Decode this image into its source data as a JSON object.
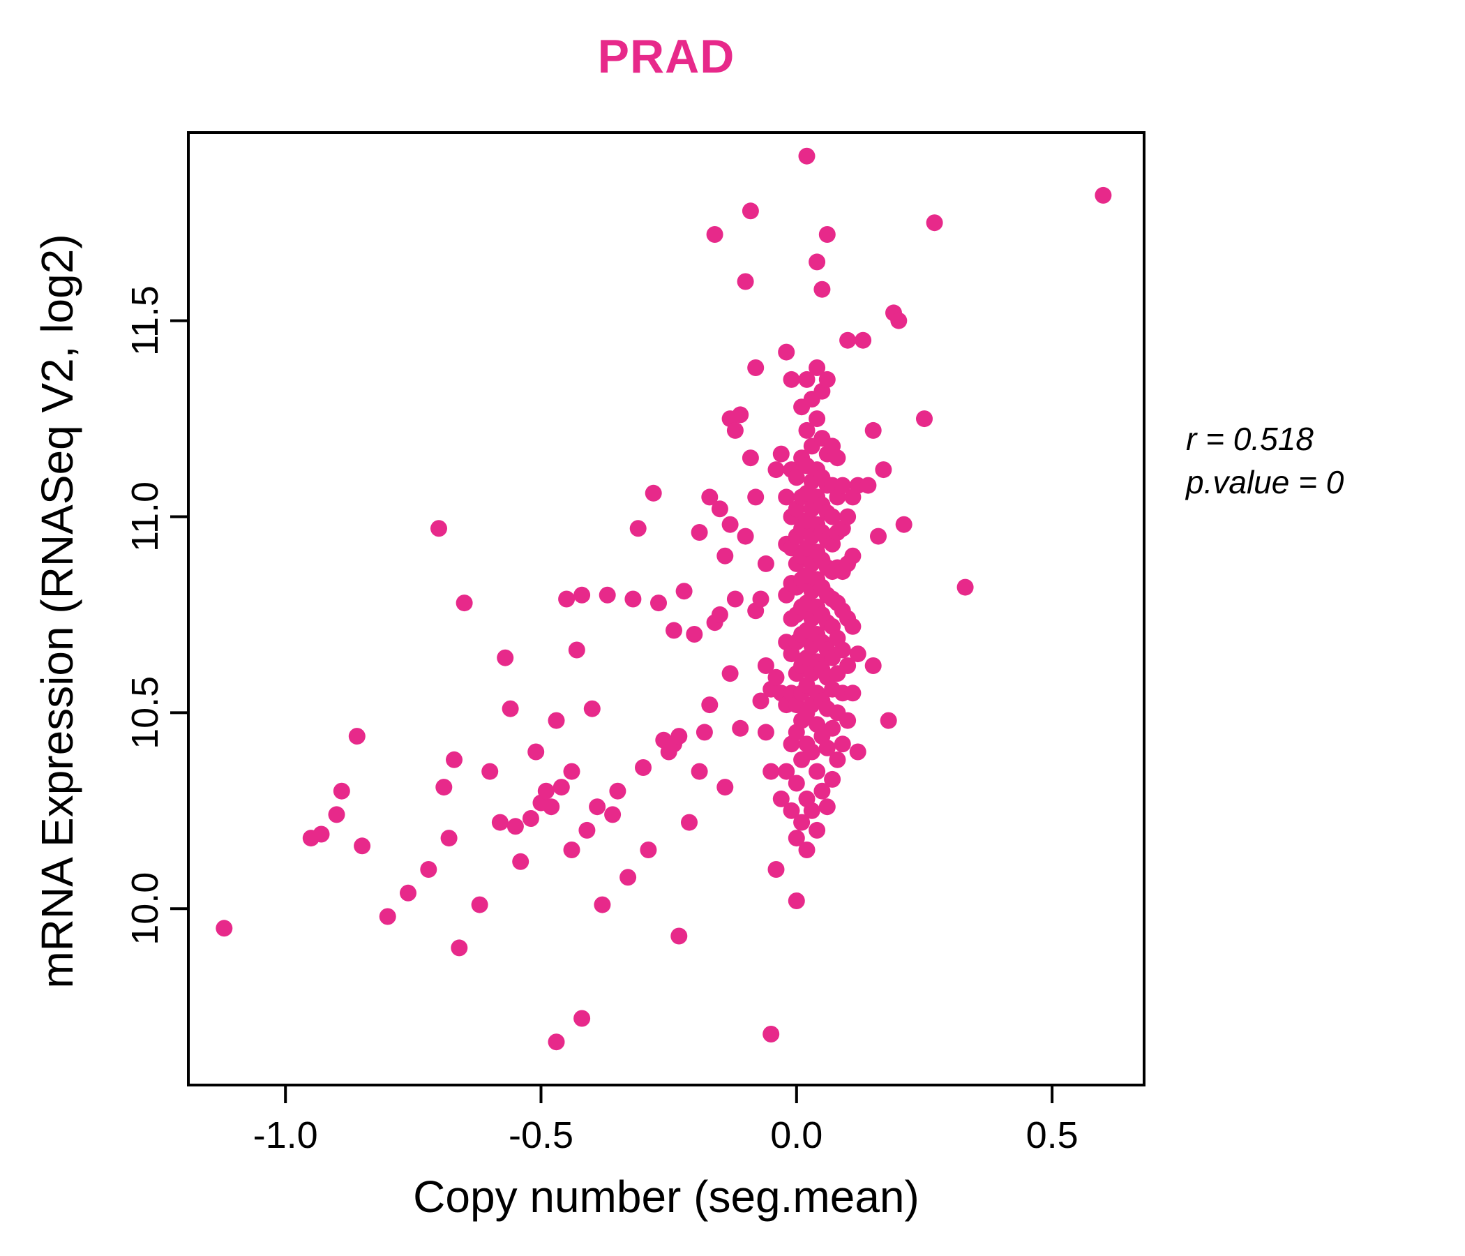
{
  "chart_data": {
    "type": "scatter",
    "title": "PRAD",
    "xlabel": "Copy number (seg.mean)",
    "ylabel": "mRNA Expression (RNASeq V2, log2)",
    "xlim": [
      -1.19,
      0.68
    ],
    "ylim": [
      9.55,
      11.98
    ],
    "grid": false,
    "point_color": "#E7298A",
    "title_color": "#E7298A",
    "axis_color": "#000000",
    "xticks": [
      {
        "value": -1.0,
        "label": "-1.0"
      },
      {
        "value": -0.5,
        "label": "-0.5"
      },
      {
        "value": 0.0,
        "label": "0.0"
      },
      {
        "value": 0.5,
        "label": "0.5"
      }
    ],
    "yticks": [
      {
        "value": 10.0,
        "label": "10.0"
      },
      {
        "value": 10.5,
        "label": "10.5"
      },
      {
        "value": 11.0,
        "label": "11.0"
      },
      {
        "value": 11.5,
        "label": "11.5"
      }
    ],
    "annotation": {
      "r_text": "r = 0.518",
      "p_text": "p.value = 0"
    },
    "points": [
      [
        -1.12,
        9.95
      ],
      [
        -0.95,
        10.18
      ],
      [
        -0.93,
        10.19
      ],
      [
        -0.9,
        10.24
      ],
      [
        -0.89,
        10.3
      ],
      [
        -0.86,
        10.44
      ],
      [
        -0.85,
        10.16
      ],
      [
        -0.8,
        9.98
      ],
      [
        -0.76,
        10.04
      ],
      [
        -0.72,
        10.1
      ],
      [
        -0.7,
        10.97
      ],
      [
        -0.69,
        10.31
      ],
      [
        -0.68,
        10.18
      ],
      [
        -0.67,
        10.38
      ],
      [
        -0.66,
        9.9
      ],
      [
        -0.65,
        10.78
      ],
      [
        -0.62,
        10.01
      ],
      [
        -0.6,
        10.35
      ],
      [
        -0.58,
        10.22
      ],
      [
        -0.57,
        10.64
      ],
      [
        -0.56,
        10.51
      ],
      [
        -0.55,
        10.21
      ],
      [
        -0.54,
        10.12
      ],
      [
        -0.52,
        10.23
      ],
      [
        -0.51,
        10.4
      ],
      [
        -0.5,
        10.27
      ],
      [
        -0.49,
        10.3
      ],
      [
        -0.48,
        10.26
      ],
      [
        -0.47,
        9.66
      ],
      [
        -0.47,
        10.48
      ],
      [
        -0.46,
        10.31
      ],
      [
        -0.45,
        10.79
      ],
      [
        -0.44,
        10.35
      ],
      [
        -0.44,
        10.15
      ],
      [
        -0.43,
        10.66
      ],
      [
        -0.42,
        10.8
      ],
      [
        -0.42,
        9.72
      ],
      [
        -0.41,
        10.2
      ],
      [
        -0.4,
        10.51
      ],
      [
        -0.39,
        10.26
      ],
      [
        -0.38,
        10.01
      ],
      [
        -0.37,
        10.8
      ],
      [
        -0.36,
        10.24
      ],
      [
        -0.35,
        10.3
      ],
      [
        -0.33,
        10.08
      ],
      [
        -0.32,
        10.79
      ],
      [
        -0.31,
        10.97
      ],
      [
        -0.3,
        10.36
      ],
      [
        -0.29,
        10.15
      ],
      [
        -0.28,
        11.06
      ],
      [
        -0.27,
        10.78
      ],
      [
        -0.26,
        10.43
      ],
      [
        -0.25,
        10.4
      ],
      [
        -0.24,
        10.71
      ],
      [
        -0.24,
        10.42
      ],
      [
        -0.23,
        10.44
      ],
      [
        -0.23,
        9.93
      ],
      [
        -0.22,
        10.81
      ],
      [
        -0.21,
        10.22
      ],
      [
        -0.2,
        10.7
      ],
      [
        -0.19,
        10.96
      ],
      [
        -0.19,
        10.35
      ],
      [
        -0.18,
        10.45
      ],
      [
        -0.17,
        10.52
      ],
      [
        -0.17,
        11.05
      ],
      [
        -0.16,
        11.72
      ],
      [
        -0.16,
        10.73
      ],
      [
        -0.15,
        11.02
      ],
      [
        -0.15,
        10.75
      ],
      [
        -0.14,
        10.9
      ],
      [
        -0.14,
        10.31
      ],
      [
        -0.13,
        11.25
      ],
      [
        -0.13,
        10.98
      ],
      [
        -0.13,
        10.6
      ],
      [
        -0.12,
        11.22
      ],
      [
        -0.12,
        10.79
      ],
      [
        -0.11,
        11.26
      ],
      [
        -0.11,
        10.46
      ],
      [
        -0.1,
        11.6
      ],
      [
        -0.1,
        10.95
      ],
      [
        -0.09,
        11.78
      ],
      [
        -0.09,
        11.15
      ],
      [
        -0.08,
        11.38
      ],
      [
        -0.08,
        11.05
      ],
      [
        -0.08,
        10.76
      ],
      [
        -0.07,
        10.79
      ],
      [
        -0.07,
        10.53
      ],
      [
        -0.06,
        10.88
      ],
      [
        -0.06,
        10.62
      ],
      [
        -0.06,
        10.45
      ],
      [
        -0.05,
        9.68
      ],
      [
        -0.05,
        10.56
      ],
      [
        -0.05,
        10.35
      ],
      [
        -0.04,
        11.12
      ],
      [
        -0.04,
        10.59
      ],
      [
        -0.04,
        10.1
      ],
      [
        -0.03,
        11.16
      ],
      [
        -0.03,
        10.55
      ],
      [
        -0.03,
        10.28
      ],
      [
        -0.02,
        10.35
      ],
      [
        -0.02,
        10.52
      ],
      [
        -0.02,
        10.68
      ],
      [
        -0.02,
        10.8
      ],
      [
        -0.02,
        10.93
      ],
      [
        -0.02,
        11.05
      ],
      [
        -0.02,
        11.42
      ],
      [
        -0.01,
        10.25
      ],
      [
        -0.01,
        10.42
      ],
      [
        -0.01,
        10.55
      ],
      [
        -0.01,
        10.65
      ],
      [
        -0.01,
        10.74
      ],
      [
        -0.01,
        10.83
      ],
      [
        -0.01,
        10.92
      ],
      [
        -0.01,
        11.0
      ],
      [
        -0.01,
        11.12
      ],
      [
        -0.01,
        11.35
      ],
      [
        0.0,
        10.02
      ],
      [
        0.0,
        10.18
      ],
      [
        0.0,
        10.32
      ],
      [
        0.0,
        10.45
      ],
      [
        0.0,
        10.52
      ],
      [
        0.0,
        10.6
      ],
      [
        0.0,
        10.68
      ],
      [
        0.0,
        10.75
      ],
      [
        0.0,
        10.82
      ],
      [
        0.0,
        10.88
      ],
      [
        0.0,
        10.95
      ],
      [
        0.0,
        11.02
      ],
      [
        0.0,
        11.1
      ],
      [
        0.01,
        10.22
      ],
      [
        0.01,
        10.38
      ],
      [
        0.01,
        10.48
      ],
      [
        0.01,
        10.55
      ],
      [
        0.01,
        10.62
      ],
      [
        0.01,
        10.7
      ],
      [
        0.01,
        10.77
      ],
      [
        0.01,
        10.84
      ],
      [
        0.01,
        10.9
      ],
      [
        0.01,
        10.97
      ],
      [
        0.01,
        11.05
      ],
      [
        0.01,
        11.15
      ],
      [
        0.01,
        11.28
      ],
      [
        0.02,
        10.15
      ],
      [
        0.02,
        10.28
      ],
      [
        0.02,
        10.42
      ],
      [
        0.02,
        10.5
      ],
      [
        0.02,
        10.57
      ],
      [
        0.02,
        10.64
      ],
      [
        0.02,
        10.71
      ],
      [
        0.02,
        10.78
      ],
      [
        0.02,
        10.85
      ],
      [
        0.02,
        10.92
      ],
      [
        0.02,
        10.99
      ],
      [
        0.02,
        11.06
      ],
      [
        0.02,
        11.13
      ],
      [
        0.02,
        11.22
      ],
      [
        0.02,
        11.35
      ],
      [
        0.02,
        11.92
      ],
      [
        0.03,
        10.25
      ],
      [
        0.03,
        10.4
      ],
      [
        0.03,
        10.52
      ],
      [
        0.03,
        10.6
      ],
      [
        0.03,
        10.67
      ],
      [
        0.03,
        10.74
      ],
      [
        0.03,
        10.81
      ],
      [
        0.03,
        10.88
      ],
      [
        0.03,
        10.95
      ],
      [
        0.03,
        11.02
      ],
      [
        0.03,
        11.09
      ],
      [
        0.03,
        11.18
      ],
      [
        0.03,
        11.3
      ],
      [
        0.04,
        10.2
      ],
      [
        0.04,
        10.35
      ],
      [
        0.04,
        10.47
      ],
      [
        0.04,
        10.55
      ],
      [
        0.04,
        10.63
      ],
      [
        0.04,
        10.7
      ],
      [
        0.04,
        10.77
      ],
      [
        0.04,
        10.84
      ],
      [
        0.04,
        10.91
      ],
      [
        0.04,
        10.98
      ],
      [
        0.04,
        11.05
      ],
      [
        0.04,
        11.12
      ],
      [
        0.04,
        11.25
      ],
      [
        0.04,
        11.38
      ],
      [
        0.04,
        11.65
      ],
      [
        0.05,
        10.3
      ],
      [
        0.05,
        10.44
      ],
      [
        0.05,
        10.53
      ],
      [
        0.05,
        10.61
      ],
      [
        0.05,
        10.68
      ],
      [
        0.05,
        10.75
      ],
      [
        0.05,
        10.82
      ],
      [
        0.05,
        10.89
      ],
      [
        0.05,
        10.96
      ],
      [
        0.05,
        11.03
      ],
      [
        0.05,
        11.1
      ],
      [
        0.05,
        11.2
      ],
      [
        0.05,
        11.32
      ],
      [
        0.05,
        11.58
      ],
      [
        0.06,
        10.26
      ],
      [
        0.06,
        10.41
      ],
      [
        0.06,
        10.51
      ],
      [
        0.06,
        10.59
      ],
      [
        0.06,
        10.66
      ],
      [
        0.06,
        10.73
      ],
      [
        0.06,
        10.8
      ],
      [
        0.06,
        10.87
      ],
      [
        0.06,
        10.94
      ],
      [
        0.06,
        11.01
      ],
      [
        0.06,
        11.08
      ],
      [
        0.06,
        11.16
      ],
      [
        0.06,
        11.35
      ],
      [
        0.06,
        11.72
      ],
      [
        0.07,
        10.33
      ],
      [
        0.07,
        10.46
      ],
      [
        0.07,
        10.56
      ],
      [
        0.07,
        10.64
      ],
      [
        0.07,
        10.72
      ],
      [
        0.07,
        10.79
      ],
      [
        0.07,
        10.86
      ],
      [
        0.07,
        10.93
      ],
      [
        0.07,
        11.0
      ],
      [
        0.07,
        11.08
      ],
      [
        0.07,
        11.18
      ],
      [
        0.08,
        10.38
      ],
      [
        0.08,
        10.5
      ],
      [
        0.08,
        10.6
      ],
      [
        0.08,
        10.69
      ],
      [
        0.08,
        10.78
      ],
      [
        0.08,
        10.87
      ],
      [
        0.08,
        10.96
      ],
      [
        0.08,
        11.05
      ],
      [
        0.08,
        11.15
      ],
      [
        0.09,
        10.42
      ],
      [
        0.09,
        10.55
      ],
      [
        0.09,
        10.66
      ],
      [
        0.09,
        10.76
      ],
      [
        0.09,
        10.86
      ],
      [
        0.09,
        10.97
      ],
      [
        0.09,
        11.08
      ],
      [
        0.1,
        10.48
      ],
      [
        0.1,
        10.62
      ],
      [
        0.1,
        10.74
      ],
      [
        0.1,
        10.88
      ],
      [
        0.1,
        11.0
      ],
      [
        0.1,
        11.45
      ],
      [
        0.11,
        10.55
      ],
      [
        0.11,
        10.72
      ],
      [
        0.11,
        10.9
      ],
      [
        0.11,
        11.05
      ],
      [
        0.12,
        10.4
      ],
      [
        0.12,
        10.65
      ],
      [
        0.12,
        11.08
      ],
      [
        0.13,
        11.45
      ],
      [
        0.14,
        11.08
      ],
      [
        0.15,
        10.62
      ],
      [
        0.15,
        11.22
      ],
      [
        0.16,
        10.95
      ],
      [
        0.17,
        11.12
      ],
      [
        0.18,
        10.48
      ],
      [
        0.19,
        11.52
      ],
      [
        0.2,
        11.5
      ],
      [
        0.21,
        10.98
      ],
      [
        0.25,
        11.25
      ],
      [
        0.27,
        11.75
      ],
      [
        0.33,
        10.82
      ],
      [
        0.6,
        11.82
      ]
    ]
  }
}
